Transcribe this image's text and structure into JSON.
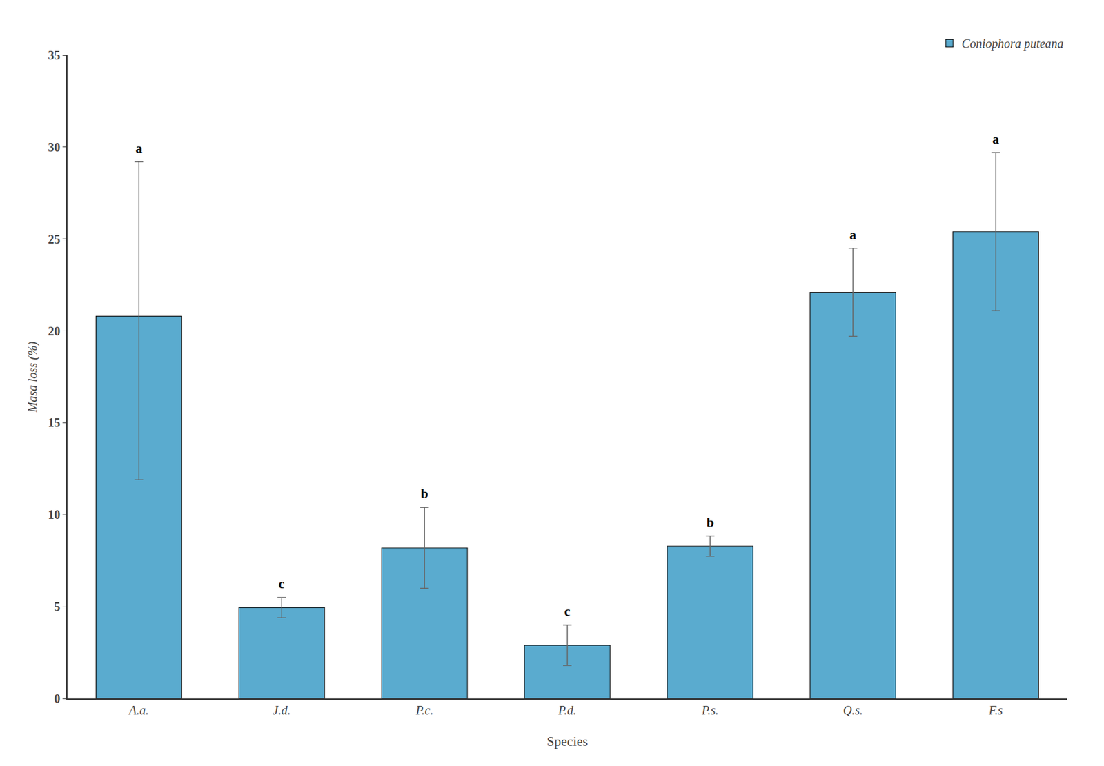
{
  "chart_data": {
    "type": "bar",
    "categories": [
      "A.a.",
      "J.d.",
      "P.c.",
      "P.d.",
      "P.s.",
      "Q.s.",
      "F.s"
    ],
    "series": [
      {
        "name": "Coniophora puteana",
        "color": "#5aabcf",
        "values": [
          20.8,
          4.95,
          8.2,
          2.9,
          8.3,
          22.1,
          25.4
        ],
        "errors_upper": [
          8.4,
          0.55,
          2.2,
          1.1,
          0.55,
          2.4,
          4.3
        ],
        "errors_lower": [
          8.9,
          0.55,
          2.2,
          1.1,
          0.55,
          2.4,
          4.3
        ],
        "significance": [
          "a",
          "c",
          "b",
          "c",
          "b",
          "a",
          "a"
        ]
      }
    ],
    "xlabel": "Species",
    "ylabel": "Masa loss (%)",
    "ylim": [
      0,
      35
    ],
    "yticks": [
      0,
      5,
      10,
      15,
      20,
      25,
      30,
      35
    ],
    "grid": false,
    "legend": "upper right"
  }
}
